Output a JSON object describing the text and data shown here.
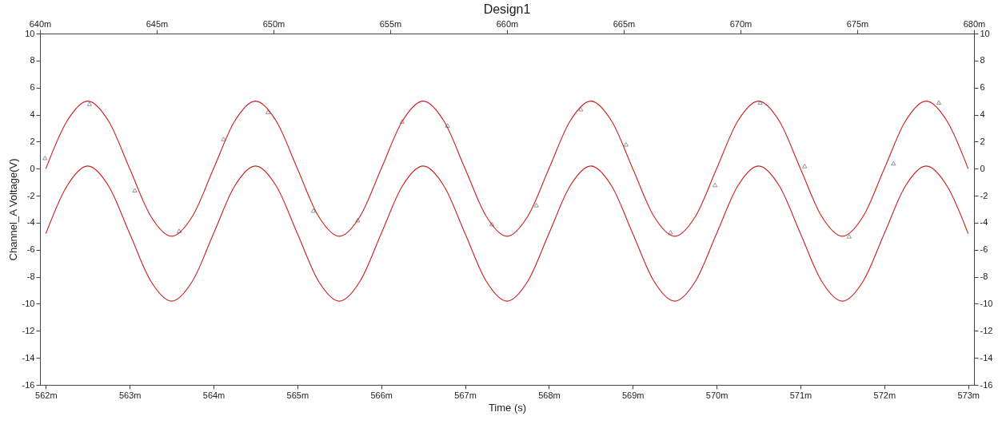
{
  "chart_data": {
    "type": "line",
    "title": "Design1",
    "xlabel": "Time (s)",
    "ylabel": "Channel_A Voltage(V)",
    "xlim": [
      561.93,
      573.07
    ],
    "xticks": [
      {
        "value": 562,
        "label": "562m"
      },
      {
        "value": 563,
        "label": "563m"
      },
      {
        "value": 564,
        "label": "564m"
      },
      {
        "value": 565,
        "label": "565m"
      },
      {
        "value": 566,
        "label": "566m"
      },
      {
        "value": 567,
        "label": "567m"
      },
      {
        "value": 568,
        "label": "568m"
      },
      {
        "value": 569,
        "label": "569m"
      },
      {
        "value": 570,
        "label": "570m"
      },
      {
        "value": 571,
        "label": "571m"
      },
      {
        "value": 572,
        "label": "572m"
      },
      {
        "value": 573,
        "label": "573m"
      }
    ],
    "x2lim": [
      640,
      680
    ],
    "x2ticks": [
      {
        "value": 640,
        "label": "640m"
      },
      {
        "value": 645,
        "label": "645m"
      },
      {
        "value": 650,
        "label": "650m"
      },
      {
        "value": 655,
        "label": "655m"
      },
      {
        "value": 660,
        "label": "660m"
      },
      {
        "value": 665,
        "label": "665m"
      },
      {
        "value": 670,
        "label": "670m"
      },
      {
        "value": 675,
        "label": "675m"
      },
      {
        "value": 680,
        "label": "680m"
      }
    ],
    "ylim": [
      -16,
      10
    ],
    "yticks": [
      -16,
      -14,
      -12,
      -10,
      -8,
      -6,
      -4,
      -2,
      0,
      2,
      4,
      6,
      8,
      10
    ],
    "y2lim": [
      -16,
      10
    ],
    "y2ticks": [
      -16,
      -14,
      -12,
      -10,
      -8,
      -6,
      -4,
      -2,
      0,
      2,
      4,
      6,
      8,
      10
    ],
    "grid": false,
    "line_style": "solid",
    "marker": "none",
    "series": [
      {
        "color": "#cc1f1f",
        "x": [
          562,
          562.25,
          562.5,
          562.75,
          563,
          563.25,
          563.5,
          563.75,
          564,
          564.25,
          564.5,
          564.75,
          565,
          565.25,
          565.5,
          565.75,
          566,
          566.25,
          566.5,
          566.75,
          567,
          567.25,
          567.5,
          567.75,
          568,
          568.25,
          568.5,
          568.75,
          569,
          569.25,
          569.5,
          569.75,
          570,
          570.25,
          570.5,
          570.75,
          571,
          571.25,
          571.5,
          571.75,
          572,
          572.25,
          572.5,
          572.75,
          573
        ],
        "values": [
          0,
          3.5,
          5,
          3.5,
          0,
          -3.5,
          -5,
          -3.5,
          0,
          3.5,
          5,
          3.5,
          0,
          -3.5,
          -5,
          -3.5,
          0,
          3.5,
          5,
          3.5,
          0,
          -3.5,
          -5,
          -3.5,
          0,
          3.5,
          5,
          3.5,
          0,
          -3.5,
          -5,
          -3.5,
          0,
          3.5,
          5,
          3.5,
          0,
          -3.5,
          -5,
          -3.5,
          0,
          3.5,
          5,
          3.5,
          0
        ]
      },
      {
        "color": "#cc1f1f",
        "x": [
          562,
          562.25,
          562.5,
          562.75,
          563,
          563.25,
          563.5,
          563.75,
          564,
          564.25,
          564.5,
          564.75,
          565,
          565.25,
          565.5,
          565.75,
          566,
          566.25,
          566.5,
          566.75,
          567,
          567.25,
          567.5,
          567.75,
          568,
          568.25,
          568.5,
          568.75,
          569,
          569.25,
          569.5,
          569.75,
          570,
          570.25,
          570.5,
          570.75,
          571,
          571.25,
          571.5,
          571.75,
          572,
          572.25,
          572.5,
          572.75,
          573
        ],
        "values": [
          -4.8,
          -1.3,
          0.2,
          -1.3,
          -4.8,
          -8.3,
          -9.8,
          -8.3,
          -4.8,
          -1.3,
          0.2,
          -1.3,
          -4.8,
          -8.3,
          -9.8,
          -8.3,
          -4.8,
          -1.3,
          0.2,
          -1.3,
          -4.8,
          -8.3,
          -9.8,
          -8.3,
          -4.8,
          -1.3,
          0.2,
          -1.3,
          -4.8,
          -8.3,
          -9.8,
          -8.3,
          -4.8,
          -1.3,
          0.2,
          -1.3,
          -4.8,
          -8.3,
          -9.8,
          -8.3,
          -4.8,
          -1.3,
          0.2,
          -1.3,
          -4.8
        ]
      },
      {
        "type": "scatter",
        "marker": "triangle",
        "color": "#555555",
        "x": [
          561.99,
          562.52,
          563.06,
          563.59,
          564.12,
          564.65,
          565.19,
          565.72,
          566.25,
          566.79,
          567.32,
          567.85,
          568.38,
          568.92,
          569.45,
          569.98,
          570.52,
          571.05,
          571.58,
          572.11,
          572.65
        ],
        "values": [
          0.8,
          4.8,
          -1.6,
          -4.6,
          2.2,
          4.2,
          -3.1,
          -3.8,
          3.5,
          3.2,
          -4.1,
          -2.7,
          4.4,
          1.8,
          -4.7,
          -1.2,
          4.9,
          0.2,
          -5,
          0.4,
          4.9
        ]
      }
    ]
  }
}
